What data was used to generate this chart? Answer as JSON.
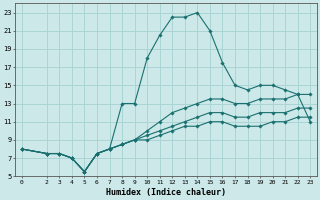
{
  "xlabel": "Humidex (Indice chaleur)",
  "xlim": [
    -0.5,
    23.5
  ],
  "ylim": [
    5,
    24
  ],
  "xticks": [
    0,
    2,
    3,
    4,
    5,
    6,
    7,
    8,
    9,
    10,
    11,
    12,
    13,
    14,
    15,
    16,
    17,
    18,
    19,
    20,
    21,
    22,
    23
  ],
  "yticks": [
    5,
    7,
    9,
    11,
    13,
    15,
    17,
    19,
    21,
    23
  ],
  "bg_color": "#cce8e8",
  "grid_color": "#aad4d4",
  "line_color": "#1a7070",
  "lines": [
    {
      "x": [
        0,
        2,
        3,
        4,
        5,
        6,
        7,
        8,
        9,
        10,
        11,
        12,
        13,
        14,
        15,
        16,
        17,
        18,
        19,
        20,
        21,
        22,
        23
      ],
      "y": [
        8,
        7.5,
        7.5,
        7,
        5.5,
        7.5,
        8,
        13,
        13,
        18,
        20.5,
        22.5,
        22.5,
        23,
        21,
        17.5,
        15,
        14.5,
        15,
        15,
        14.5,
        14,
        11
      ]
    },
    {
      "x": [
        0,
        2,
        3,
        4,
        5,
        6,
        7,
        8,
        9,
        10,
        11,
        12,
        13,
        14,
        15,
        16,
        17,
        18,
        19,
        20,
        21,
        22,
        23
      ],
      "y": [
        8,
        7.5,
        7.5,
        7,
        5.5,
        7.5,
        8,
        8.5,
        9,
        10,
        11,
        12,
        12.5,
        13,
        13.5,
        13.5,
        13,
        13,
        13.5,
        13.5,
        13.5,
        14,
        14
      ]
    },
    {
      "x": [
        0,
        2,
        3,
        4,
        5,
        6,
        7,
        8,
        9,
        10,
        11,
        12,
        13,
        14,
        15,
        16,
        17,
        18,
        19,
        20,
        21,
        22,
        23
      ],
      "y": [
        8,
        7.5,
        7.5,
        7,
        5.5,
        7.5,
        8,
        8.5,
        9,
        9.5,
        10,
        10.5,
        11,
        11.5,
        12,
        12,
        11.5,
        11.5,
        12,
        12,
        12,
        12.5,
        12.5
      ]
    },
    {
      "x": [
        0,
        2,
        3,
        4,
        5,
        6,
        7,
        8,
        9,
        10,
        11,
        12,
        13,
        14,
        15,
        16,
        17,
        18,
        19,
        20,
        21,
        22,
        23
      ],
      "y": [
        8,
        7.5,
        7.5,
        7,
        5.5,
        7.5,
        8,
        8.5,
        9,
        9,
        9.5,
        10,
        10.5,
        10.5,
        11,
        11,
        10.5,
        10.5,
        10.5,
        11,
        11,
        11.5,
        11.5
      ]
    }
  ]
}
